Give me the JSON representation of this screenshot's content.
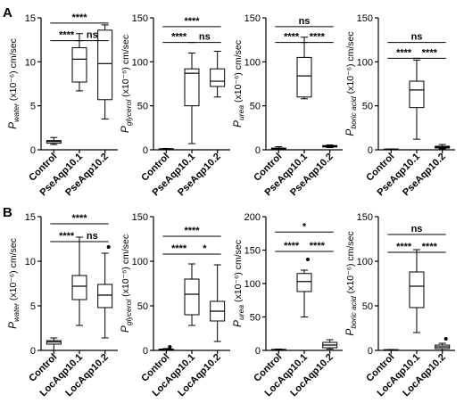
{
  "panels": [
    {
      "letter": "A"
    },
    {
      "letter": "B"
    }
  ],
  "chart_data": [
    {
      "type": "box",
      "panel": "A",
      "ylabel": {
        "symbol": "P",
        "sub": "water",
        "unit": " (x10⁻⁶) cm/sec"
      },
      "ylim": [
        0,
        15
      ],
      "yticks": [
        0,
        5,
        10,
        15
      ],
      "categories": [
        "Control",
        "PseAqp10.1",
        "PseAqp10.2"
      ],
      "boxes": [
        {
          "min": 0.6,
          "q1": 0.75,
          "median": 0.95,
          "q3": 1.05,
          "max": 1.4,
          "outliers": []
        },
        {
          "min": 6.7,
          "q1": 7.7,
          "median": 10.3,
          "q3": 11.6,
          "max": 13.2,
          "outliers": []
        },
        {
          "min": 3.5,
          "q1": 5.7,
          "median": 9.8,
          "q3": 13.6,
          "max": 14.2,
          "outliers": []
        }
      ],
      "sig": [
        {
          "from": 0,
          "to": 2,
          "label": "****",
          "level": 14.4
        },
        {
          "from": 0,
          "to": 1,
          "label": "****",
          "level": 12.4
        },
        {
          "from": 1,
          "to": 2,
          "label": "ns",
          "level": 12.4
        }
      ]
    },
    {
      "type": "box",
      "panel": "A",
      "ylabel": {
        "symbol": "P",
        "sub": "glycerol",
        "unit": " (x10⁻⁶) cm/sec"
      },
      "ylim": [
        0,
        150
      ],
      "yticks": [
        0,
        50,
        100,
        150
      ],
      "categories": [
        "Control",
        "PseAqp10.1",
        "PseAqp10.2"
      ],
      "boxes": [
        {
          "min": 0.5,
          "q1": 0.7,
          "median": 1,
          "q3": 1.2,
          "max": 1.5,
          "outliers": []
        },
        {
          "min": 7,
          "q1": 50,
          "median": 87,
          "q3": 92,
          "max": 110,
          "outliers": []
        },
        {
          "min": 60,
          "q1": 72,
          "median": 78,
          "q3": 92,
          "max": 112,
          "outliers": []
        }
      ],
      "sig": [
        {
          "from": 0,
          "to": 2,
          "label": "****",
          "level": 140
        },
        {
          "from": 0,
          "to": 1,
          "label": "****",
          "level": 122
        },
        {
          "from": 1,
          "to": 2,
          "label": "ns",
          "level": 122
        }
      ]
    },
    {
      "type": "box",
      "panel": "A",
      "ylabel": {
        "symbol": "P",
        "sub": "urea",
        "unit": " (x10⁻⁶) cm/sec"
      },
      "ylim": [
        0,
        150
      ],
      "yticks": [
        0,
        50,
        100,
        150
      ],
      "categories": [
        "Control",
        "PseAqp10.1",
        "PseAqp10.2"
      ],
      "boxes": [
        {
          "min": 0,
          "q1": 0.5,
          "median": 1,
          "q3": 2,
          "max": 3.5,
          "outliers": []
        },
        {
          "min": 58,
          "q1": 60,
          "median": 84,
          "q3": 105,
          "max": 128,
          "outliers": []
        },
        {
          "min": 2.5,
          "q1": 3.2,
          "median": 4,
          "q3": 4.8,
          "max": 5.5,
          "outliers": []
        }
      ],
      "sig": [
        {
          "from": 0,
          "to": 2,
          "label": "ns",
          "level": 140
        },
        {
          "from": 0,
          "to": 1,
          "label": "****",
          "level": 122
        },
        {
          "from": 1,
          "to": 2,
          "label": "****",
          "level": 122
        }
      ]
    },
    {
      "type": "box",
      "panel": "A",
      "ylabel": {
        "symbol": "P",
        "sub": "boric acid",
        "unit": " (x10⁻⁶) cm/sec"
      },
      "ylim": [
        0,
        150
      ],
      "yticks": [
        0,
        50,
        100,
        150
      ],
      "categories": [
        "Control",
        "PseAqp10.1",
        "PseAqp10.2"
      ],
      "boxes": [
        {
          "min": 0.2,
          "q1": 0.4,
          "median": 0.6,
          "q3": 0.8,
          "max": 1,
          "outliers": []
        },
        {
          "min": 12,
          "q1": 48,
          "median": 68,
          "q3": 78,
          "max": 102,
          "outliers": []
        },
        {
          "min": 1,
          "q1": 2,
          "median": 3,
          "q3": 4,
          "max": 6,
          "outliers": []
        }
      ],
      "sig": [
        {
          "from": 0,
          "to": 2,
          "label": "ns",
          "level": 122
        },
        {
          "from": 0,
          "to": 1,
          "label": "****",
          "level": 104
        },
        {
          "from": 1,
          "to": 2,
          "label": "****",
          "level": 104
        }
      ]
    },
    {
      "type": "box",
      "panel": "B",
      "ylabel": {
        "symbol": "P",
        "sub": "water",
        "unit": " (x10⁻⁶) cm/sec"
      },
      "ylim": [
        0,
        15
      ],
      "yticks": [
        0,
        5,
        10,
        15
      ],
      "categories": [
        "Control",
        "LocAqp10.1",
        "LocAqp10.2"
      ],
      "boxes": [
        {
          "min": 0,
          "q1": 0.7,
          "median": 0.95,
          "q3": 1.1,
          "max": 1.4,
          "outliers": []
        },
        {
          "min": 2.8,
          "q1": 5.7,
          "median": 7.2,
          "q3": 8.4,
          "max": 12.7,
          "outliers": []
        },
        {
          "min": 1.4,
          "q1": 4.8,
          "median": 6.2,
          "q3": 7.4,
          "max": 10.9,
          "outliers": [
            11.6
          ]
        }
      ],
      "sig": [
        {
          "from": 0,
          "to": 2,
          "label": "****",
          "level": 14.2
        },
        {
          "from": 0,
          "to": 1,
          "label": "****",
          "level": 12.2
        },
        {
          "from": 1,
          "to": 2,
          "label": "ns",
          "level": 12.2
        }
      ]
    },
    {
      "type": "box",
      "panel": "B",
      "ylabel": {
        "symbol": "P",
        "sub": "glycerol",
        "unit": " (x10⁻⁶) cm/sec"
      },
      "ylim": [
        0,
        150
      ],
      "yticks": [
        0,
        50,
        100,
        150
      ],
      "categories": [
        "Control",
        "LocAqp10.1",
        "LocAqp10.2"
      ],
      "boxes": [
        {
          "min": 0,
          "q1": 0.5,
          "median": 1,
          "q3": 1.5,
          "max": 2,
          "outliers": [
            3,
            4
          ]
        },
        {
          "min": 28,
          "q1": 40,
          "median": 63,
          "q3": 80,
          "max": 97,
          "outliers": []
        },
        {
          "min": 10,
          "q1": 33,
          "median": 44,
          "q3": 55,
          "max": 96,
          "outliers": []
        }
      ],
      "sig": [
        {
          "from": 0,
          "to": 2,
          "label": "****",
          "level": 128
        },
        {
          "from": 0,
          "to": 1,
          "label": "****",
          "level": 108
        },
        {
          "from": 1,
          "to": 2,
          "label": "*",
          "level": 108
        }
      ]
    },
    {
      "type": "box",
      "panel": "B",
      "ylabel": {
        "symbol": "P",
        "sub": "urea",
        "unit": " (x10⁻⁶) cm/sec"
      },
      "ylim": [
        0,
        200
      ],
      "yticks": [
        0,
        50,
        100,
        150,
        200
      ],
      "categories": [
        "Control",
        "LocAqp10.1",
        "LocAqp10.2"
      ],
      "boxes": [
        {
          "min": 0,
          "q1": 0.5,
          "median": 1,
          "q3": 1.5,
          "max": 2,
          "outliers": []
        },
        {
          "min": 50,
          "q1": 88,
          "median": 103,
          "q3": 115,
          "max": 120,
          "outliers": [
            136
          ]
        },
        {
          "min": 2,
          "q1": 4,
          "median": 8,
          "q3": 12,
          "max": 16,
          "outliers": []
        }
      ],
      "sig": [
        {
          "from": 0,
          "to": 2,
          "label": "*",
          "level": 177
        },
        {
          "from": 0,
          "to": 1,
          "label": "****",
          "level": 148
        },
        {
          "from": 1,
          "to": 2,
          "label": "****",
          "level": 148
        }
      ]
    },
    {
      "type": "box",
      "panel": "B",
      "ylabel": {
        "symbol": "P",
        "sub": "boric acid",
        "unit": " (x10⁻⁶) cm/sec"
      },
      "ylim": [
        0,
        150
      ],
      "yticks": [
        0,
        50,
        100,
        150
      ],
      "categories": [
        "Control",
        "LocAqp10.1",
        "LocAqp10.2"
      ],
      "boxes": [
        {
          "min": 0,
          "q1": 0.3,
          "median": 0.5,
          "q3": 0.8,
          "max": 1,
          "outliers": []
        },
        {
          "min": 20,
          "q1": 48,
          "median": 72,
          "q3": 88,
          "max": 113,
          "outliers": []
        },
        {
          "min": 0,
          "q1": 2,
          "median": 4,
          "q3": 6,
          "max": 8,
          "outliers": [
            13
          ]
        }
      ],
      "sig": [
        {
          "from": 0,
          "to": 2,
          "label": "ns",
          "level": 130
        },
        {
          "from": 0,
          "to": 1,
          "label": "****",
          "level": 110
        },
        {
          "from": 1,
          "to": 2,
          "label": "****",
          "level": 110
        }
      ]
    }
  ]
}
